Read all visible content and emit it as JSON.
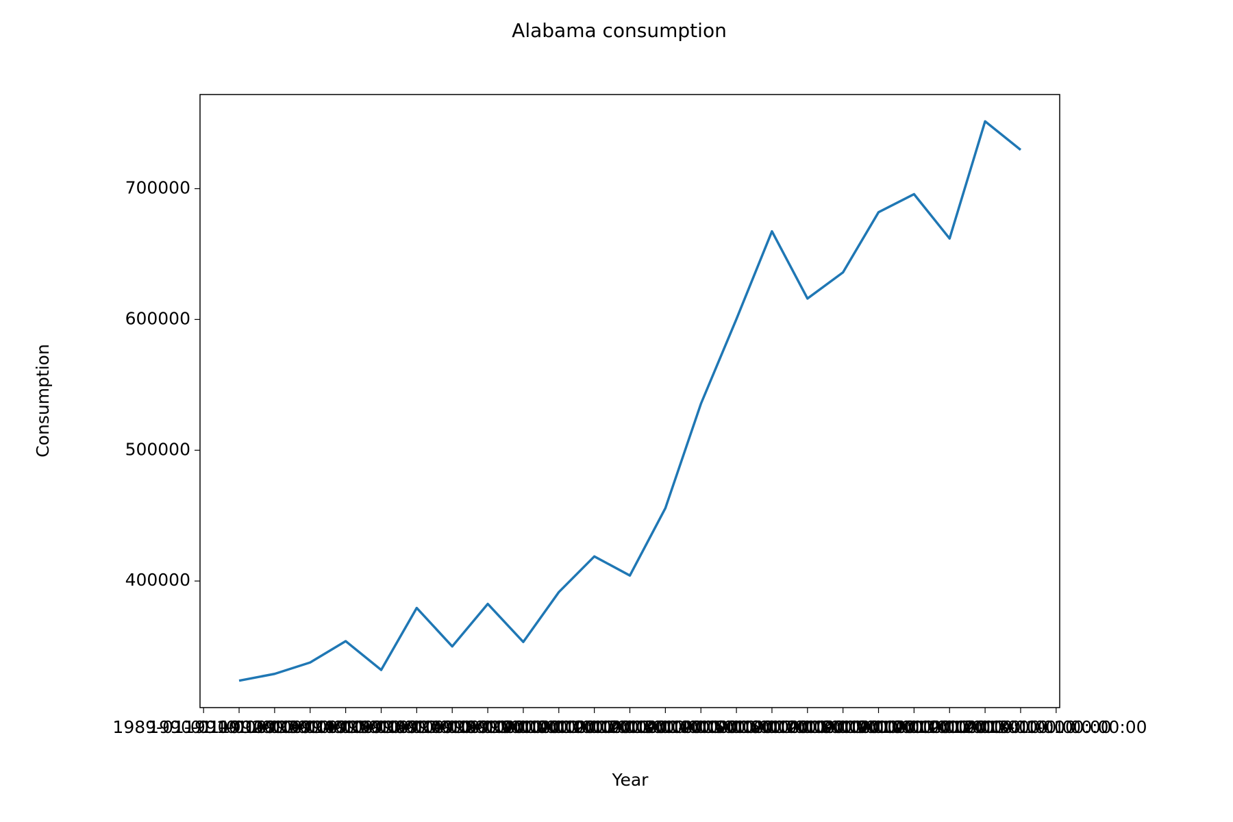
{
  "chart_data": {
    "type": "line",
    "title": "Alabama consumption",
    "xlabel": "Year",
    "ylabel": "Consumption",
    "x": [
      1990,
      1991,
      1992,
      1993,
      1994,
      1995,
      1996,
      1997,
      1998,
      1999,
      2000,
      2001,
      2002,
      2003,
      2004,
      2005,
      2006,
      2007,
      2008,
      2009,
      2010,
      2011,
      2012
    ],
    "series": [
      {
        "name": "Consumption",
        "color": "#1f77b4",
        "values": [
          323800,
          329000,
          337700,
          354000,
          332000,
          379400,
          350000,
          382500,
          353400,
          391500,
          418800,
          404200,
          455700,
          535500,
          600300,
          667400,
          616000,
          636000,
          682000,
          695800,
          661900,
          751500,
          729700
        ]
      }
    ],
    "xlim": [
      1988.9,
      2013.1
    ],
    "xticks": [
      {
        "value": 1989,
        "label": "1989-01-01 00:00:00"
      },
      {
        "value": 1990,
        "label": "1990-01-01 00:00:00"
      },
      {
        "value": 1991,
        "label": "1991-01-01 00:00:00"
      },
      {
        "value": 1992,
        "label": "1992-01-01 00:00:00"
      },
      {
        "value": 1993,
        "label": "1993-01-01 00:00:00"
      },
      {
        "value": 1994,
        "label": "1994-01-01 00:00:00"
      },
      {
        "value": 1995,
        "label": "1995-01-01 00:00:00"
      },
      {
        "value": 1996,
        "label": "1996-01-01 00:00:00"
      },
      {
        "value": 1997,
        "label": "1997-01-01 00:00:00"
      },
      {
        "value": 1998,
        "label": "1998-01-01 00:00:00"
      },
      {
        "value": 1999,
        "label": "1999-01-01 00:00:00"
      },
      {
        "value": 2000,
        "label": "2000-01-01 00:00:00"
      },
      {
        "value": 2001,
        "label": "2001-01-01 00:00:00"
      },
      {
        "value": 2002,
        "label": "2002-01-01 00:00:00"
      },
      {
        "value": 2003,
        "label": "2003-01-01 00:00:00"
      },
      {
        "value": 2004,
        "label": "2004-01-01 00:00:00"
      },
      {
        "value": 2005,
        "label": "2005-01-01 00:00:00"
      },
      {
        "value": 2006,
        "label": "2006-01-01 00:00:00"
      },
      {
        "value": 2007,
        "label": "2007-01-01 00:00:00"
      },
      {
        "value": 2008,
        "label": "2008-01-01 00:00:00"
      },
      {
        "value": 2009,
        "label": "2009-01-01 00:00:00"
      },
      {
        "value": 2010,
        "label": "2010-01-01 00:00:00"
      },
      {
        "value": 2011,
        "label": "2011-01-01 00:00:00"
      },
      {
        "value": 2012,
        "label": "2012-01-01 00:00:00"
      },
      {
        "value": 2013,
        "label": "2013-01-01 00:00:00"
      }
    ],
    "ylim": [
      303200,
      772000
    ],
    "yticks": [
      400000,
      500000,
      600000,
      700000
    ],
    "grid": false
  }
}
